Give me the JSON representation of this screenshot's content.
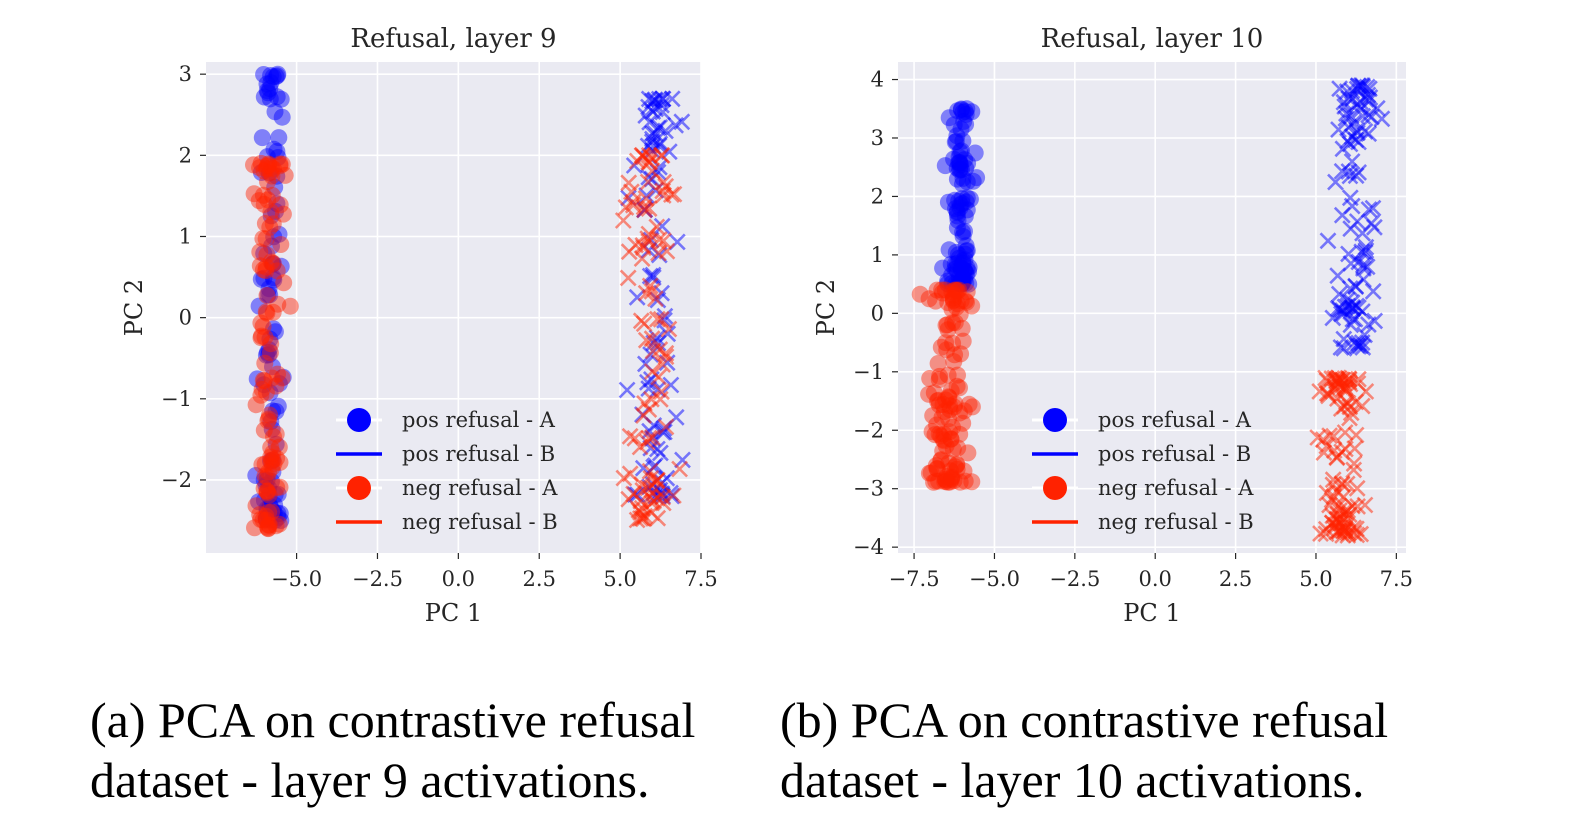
{
  "chart_data": [
    {
      "type": "scatter",
      "title": "Refusal, layer 9",
      "xlabel": "PC 1",
      "ylabel": "PC 2",
      "xlim": [
        -7.8,
        7.5
      ],
      "ylim": [
        -2.9,
        3.15
      ],
      "xticks": [
        -5.0,
        -2.5,
        0.0,
        2.5,
        5.0,
        7.5
      ],
      "xtick_labels": [
        "−5.0",
        "−2.5",
        "0.0",
        "2.5",
        "5.0",
        "7.5"
      ],
      "yticks": [
        -2,
        -1,
        0,
        1,
        2,
        3
      ],
      "ytick_labels": [
        "−2",
        "−1",
        "0",
        "1",
        "2",
        "3"
      ],
      "grid": true,
      "legend_position": "lower-center",
      "legend": [
        {
          "label": "pos refusal - A",
          "marker": "circle",
          "color": "#0000ff"
        },
        {
          "label": "pos refusal - B",
          "marker": "line",
          "color": "#0000ff"
        },
        {
          "label": "neg refusal - A",
          "marker": "circle",
          "color": "#ff2200"
        },
        {
          "label": "neg refusal - B",
          "marker": "line",
          "color": "#ff2200"
        }
      ],
      "series": [
        {
          "name": "pos refusal - A",
          "marker": "circle",
          "color": "#0000ff",
          "clusters": [
            {
              "x_mean": -5.8,
              "x_sd": 0.2,
              "y_min": -2.5,
              "y_max": 3.0,
              "count": 95
            }
          ]
        },
        {
          "name": "neg refusal - A",
          "marker": "circle",
          "color": "#ff2200",
          "clusters": [
            {
              "x_mean": -5.85,
              "x_sd": 0.22,
              "y_min": -2.6,
              "y_max": 1.9,
              "count": 110
            }
          ]
        },
        {
          "name": "pos refusal - B",
          "marker": "x",
          "color": "#0000ff",
          "clusters": [
            {
              "x_mean": 6.1,
              "x_sd": 0.35,
              "y_min": -2.2,
              "y_max": 2.7,
              "count": 95
            }
          ]
        },
        {
          "name": "neg refusal - B",
          "marker": "x",
          "color": "#ff2200",
          "clusters": [
            {
              "x_mean": 5.9,
              "x_sd": 0.35,
              "y_min": -2.5,
              "y_max": 2.0,
              "count": 105
            }
          ]
        }
      ]
    },
    {
      "type": "scatter",
      "title": "Refusal, layer 10",
      "xlabel": "PC 1",
      "ylabel": "PC 2",
      "xlim": [
        -8.0,
        7.8
      ],
      "ylim": [
        -4.1,
        4.3
      ],
      "xticks": [
        -7.5,
        -5.0,
        -2.5,
        0.0,
        2.5,
        5.0,
        7.5
      ],
      "xtick_labels": [
        "−7.5",
        "−5.0",
        "−2.5",
        "0.0",
        "2.5",
        "5.0",
        "7.5"
      ],
      "yticks": [
        -4,
        -3,
        -2,
        -1,
        0,
        1,
        2,
        3,
        4
      ],
      "ytick_labels": [
        "−4",
        "−3",
        "−2",
        "−1",
        "0",
        "1",
        "2",
        "3",
        "4"
      ],
      "grid": true,
      "legend_position": "lower-center",
      "legend": [
        {
          "label": "pos refusal - A",
          "marker": "circle",
          "color": "#0000ff"
        },
        {
          "label": "pos refusal - B",
          "marker": "line",
          "color": "#0000ff"
        },
        {
          "label": "neg refusal - A",
          "marker": "circle",
          "color": "#ff2200"
        },
        {
          "label": "neg refusal - B",
          "marker": "line",
          "color": "#ff2200"
        }
      ],
      "series": [
        {
          "name": "pos refusal - A",
          "marker": "circle",
          "color": "#0000ff",
          "clusters": [
            {
              "x_mean": -6.0,
              "x_sd": 0.2,
              "y_min": 0.5,
              "y_max": 3.5,
              "count": 110
            }
          ]
        },
        {
          "name": "neg refusal - A",
          "marker": "circle",
          "color": "#ff2200",
          "clusters": [
            {
              "x_mean": -6.4,
              "x_sd": 0.3,
              "y_min": -2.9,
              "y_max": 0.4,
              "count": 120
            }
          ]
        },
        {
          "name": "pos refusal - B",
          "marker": "x",
          "color": "#0000ff",
          "clusters": [
            {
              "x_mean": 6.3,
              "x_sd": 0.4,
              "y_min": -0.6,
              "y_max": 3.9,
              "count": 110
            }
          ]
        },
        {
          "name": "neg refusal - B",
          "marker": "x",
          "color": "#ff2200",
          "clusters": [
            {
              "x_mean": 5.8,
              "x_sd": 0.35,
              "y_min": -3.8,
              "y_max": -1.1,
              "count": 110
            }
          ]
        }
      ]
    }
  ],
  "captions": [
    {
      "line1": "(a) PCA on contrastive refusal",
      "line2": "dataset - layer 9 activations."
    },
    {
      "line1": "(b) PCA on contrastive refusal",
      "line2": "dataset - layer 10 activations."
    }
  ]
}
